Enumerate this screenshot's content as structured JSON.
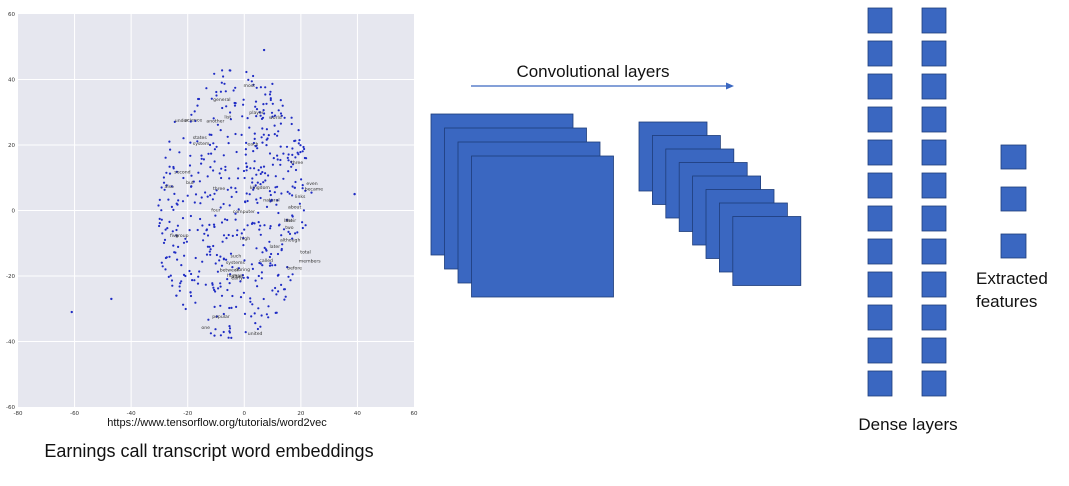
{
  "colors": {
    "plot_bg": "#e6e7ef",
    "grid": "#ffffff",
    "point": "#1f2cc4",
    "block_fill": "#3a67c1",
    "block_stroke": "#1f3d7a",
    "arrow": "#3a67c1"
  },
  "scatter_plot": {
    "x_ticks": [
      "-80",
      "-60",
      "-40",
      "-20",
      "0",
      "20",
      "40",
      "60"
    ],
    "y_ticks": [
      "60",
      "40",
      "20",
      "0",
      "-20",
      "-40",
      "-60"
    ],
    "word_labels": [
      "one",
      "two",
      "computer",
      "systems",
      "system",
      "group",
      "player",
      "popular",
      "states",
      "kingdom",
      "human",
      "another",
      "each",
      "links",
      "second",
      "total",
      "world",
      "members",
      "science",
      "between",
      "united",
      "general",
      "became",
      "natural",
      "last",
      "list",
      "early",
      "three",
      "four",
      "five",
      "but",
      "most",
      "high",
      "three",
      "such",
      "during",
      "even",
      "called",
      "although",
      "about",
      "after",
      "under",
      "before",
      "later",
      "their",
      "also"
    ]
  },
  "url_label": "https://www.tensorflow.org/tutorials/word2vec",
  "left_caption": "Earnings call transcript word embeddings",
  "conv_label": "Convolutional layers",
  "dense_label": "Dense layers",
  "features_label_line1": "Extracted",
  "features_label_line2": "features"
}
